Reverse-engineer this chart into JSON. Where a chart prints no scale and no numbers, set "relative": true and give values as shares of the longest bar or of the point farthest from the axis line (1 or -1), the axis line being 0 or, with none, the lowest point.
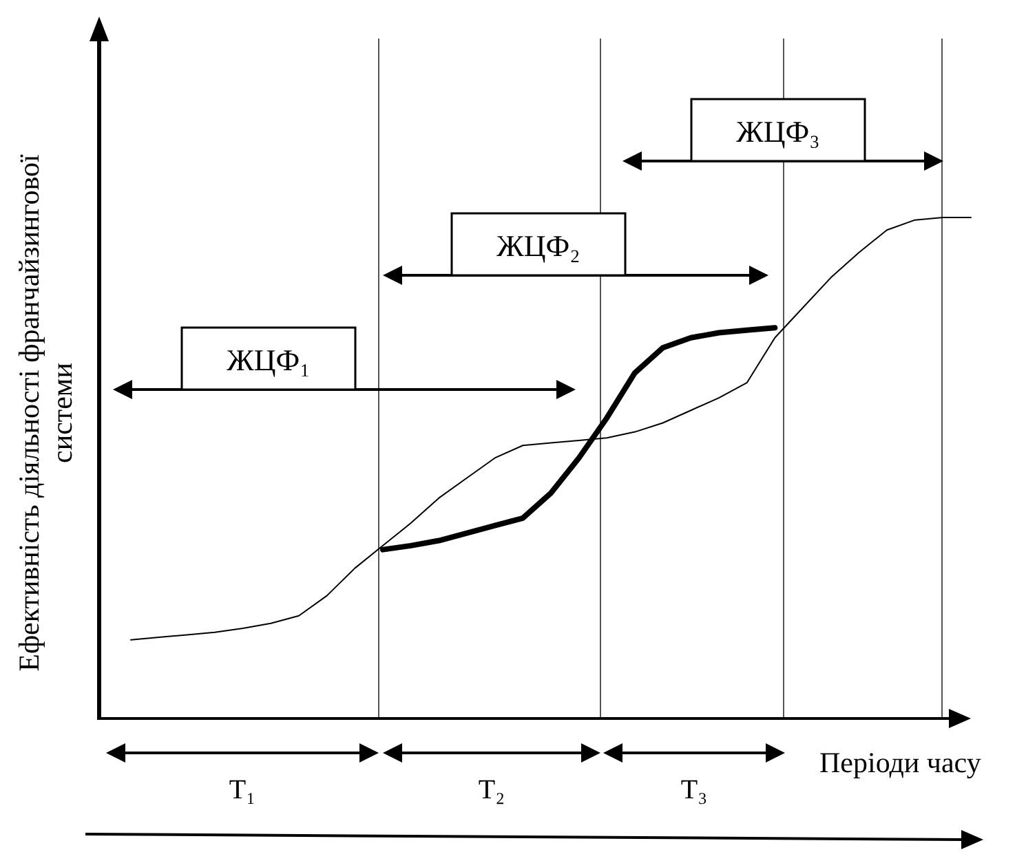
{
  "chart_data": {
    "type": "line",
    "relative": true,
    "xlabel": "Періоди часу",
    "ylabel": "Ефективність діяльності франчайзингової системи",
    "marker": "none",
    "line_style": "solid",
    "categories": [
      null,
      null,
      null,
      null,
      null,
      null,
      null,
      null,
      null,
      null,
      null,
      null,
      null,
      null,
      null,
      null,
      null,
      null,
      null,
      null,
      null,
      null,
      null,
      null,
      null,
      null,
      null,
      null,
      null,
      null,
      null
    ],
    "series": [
      {
        "color": "#000000",
        "values": [
          0.157,
          0.162,
          0.167,
          0.172,
          0.18,
          0.19,
          0.205,
          0.245,
          0.3,
          0.345,
          0.39,
          0.44,
          0.48,
          0.52,
          0.545,
          0.55,
          0.555,
          0.56,
          0.572,
          0.59,
          0.615,
          0.64,
          0.67,
          0.76,
          0.82,
          0.88,
          0.93,
          0.975,
          0.995,
          1,
          1
        ]
      },
      {
        "color": "#000000",
        "values": [
          null,
          null,
          null,
          null,
          null,
          null,
          null,
          null,
          null,
          0.337,
          0.345,
          0.355,
          0.37,
          0.385,
          0.4,
          0.45,
          0.52,
          0.6,
          0.69,
          0.74,
          0.76,
          0.77,
          0.775,
          0.78,
          null,
          null,
          null,
          null,
          null,
          null,
          null
        ]
      }
    ],
    "annotations": [
      "ЖЦФ₁",
      "ЖЦФ₂",
      "ЖЦФ₃",
      "T₁",
      "T₂",
      "T₃"
    ]
  }
}
